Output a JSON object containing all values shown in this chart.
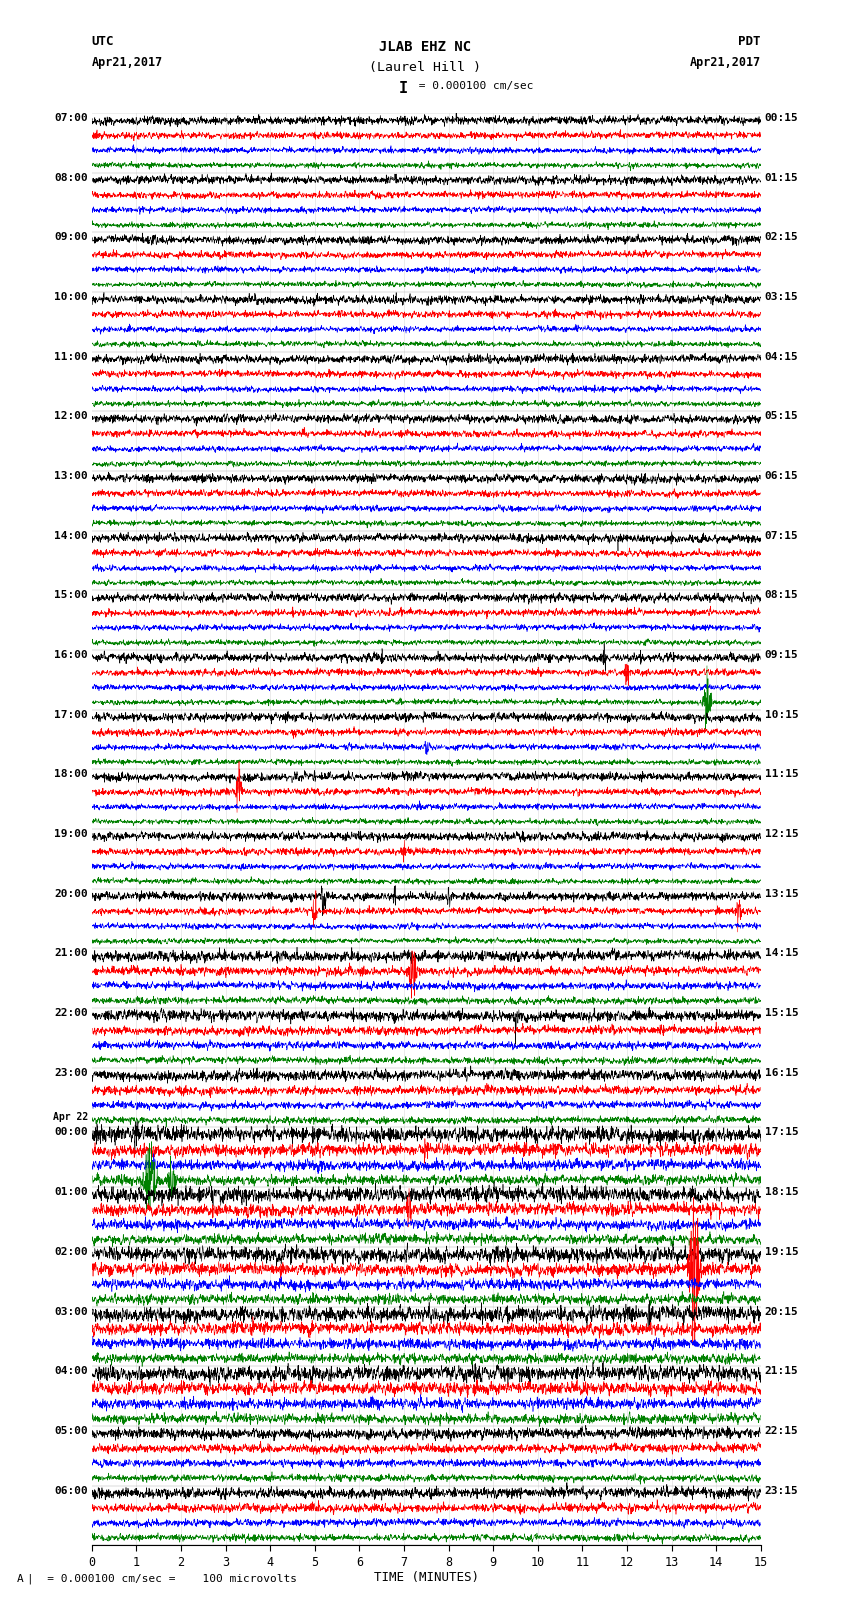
{
  "title_line1": "JLAB EHZ NC",
  "title_line2": "(Laurel Hill )",
  "scale_text": "I = 0.000100 cm/sec",
  "utc_label": "UTC",
  "pdt_label": "PDT",
  "date_left": "Apr21,2017",
  "date_right": "Apr21,2017",
  "footer_note": "A |  = 0.000100 cm/sec =    100 microvolts",
  "xlabel": "TIME (MINUTES)",
  "bg_color": "#ffffff",
  "trace_colors": [
    "black",
    "red",
    "blue",
    "green"
  ],
  "n_rows": 96,
  "n_cols": 2700,
  "x_min": 0,
  "x_max": 15,
  "x_ticks": [
    0,
    1,
    2,
    3,
    4,
    5,
    6,
    7,
    8,
    9,
    10,
    11,
    12,
    13,
    14,
    15
  ],
  "left_labels": [
    "07:00",
    "08:00",
    "09:00",
    "10:00",
    "11:00",
    "12:00",
    "13:00",
    "14:00",
    "15:00",
    "16:00",
    "17:00",
    "18:00",
    "19:00",
    "20:00",
    "21:00",
    "22:00",
    "23:00",
    "00:00",
    "01:00",
    "02:00",
    "03:00",
    "04:00",
    "05:00",
    "06:00"
  ],
  "left_prefix": [
    "",
    "",
    "",
    "",
    "",
    "",
    "",
    "",
    "",
    "",
    "",
    "",
    "",
    "",
    "",
    "",
    "",
    "Apr 22",
    "",
    "",
    "",
    "",
    "",
    ""
  ],
  "right_labels": [
    "00:15",
    "01:15",
    "02:15",
    "03:15",
    "04:15",
    "05:15",
    "06:15",
    "07:15",
    "08:15",
    "09:15",
    "10:15",
    "11:15",
    "12:15",
    "13:15",
    "14:15",
    "15:15",
    "16:15",
    "17:15",
    "18:15",
    "19:15",
    "20:15",
    "21:15",
    "22:15",
    "23:15"
  ],
  "noise_amps": [
    0.32,
    0.26,
    0.22,
    0.2
  ],
  "row_scale": 0.4
}
